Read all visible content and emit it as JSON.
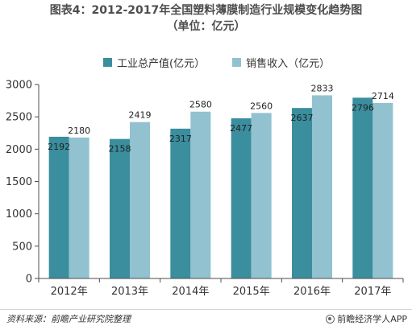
{
  "header": {
    "title": "图表4：2012-2017年全国塑料薄膜制造行业规模变化趋势图",
    "subtitle": "（单位：亿元）"
  },
  "footer": {
    "source": "资料来源：前瞻产业研究院整理",
    "brand": "前瞻经济学人APP"
  },
  "icons": {
    "brand": "brand-logo-icon"
  },
  "colors": {
    "series1": "#3a8e9e",
    "series2": "#92c2cf",
    "axis": "#4d4d4d",
    "text": "#333333"
  },
  "chart_data": {
    "type": "bar",
    "categories": [
      "2012年",
      "2013年",
      "2014年",
      "2015年",
      "2016年",
      "2017年"
    ],
    "series": [
      {
        "name": "工业总产值(亿元）",
        "values": [
          2192,
          2158,
          2317,
          2477,
          2637,
          2796
        ]
      },
      {
        "name": "销售收入（亿元）",
        "values": [
          2180,
          2419,
          2580,
          2560,
          2833,
          2714
        ]
      }
    ],
    "ylim": [
      0,
      3000
    ],
    "yticks": [
      0,
      500,
      1000,
      1500,
      2000,
      2500,
      3000
    ],
    "legend": "top",
    "grid": false
  }
}
